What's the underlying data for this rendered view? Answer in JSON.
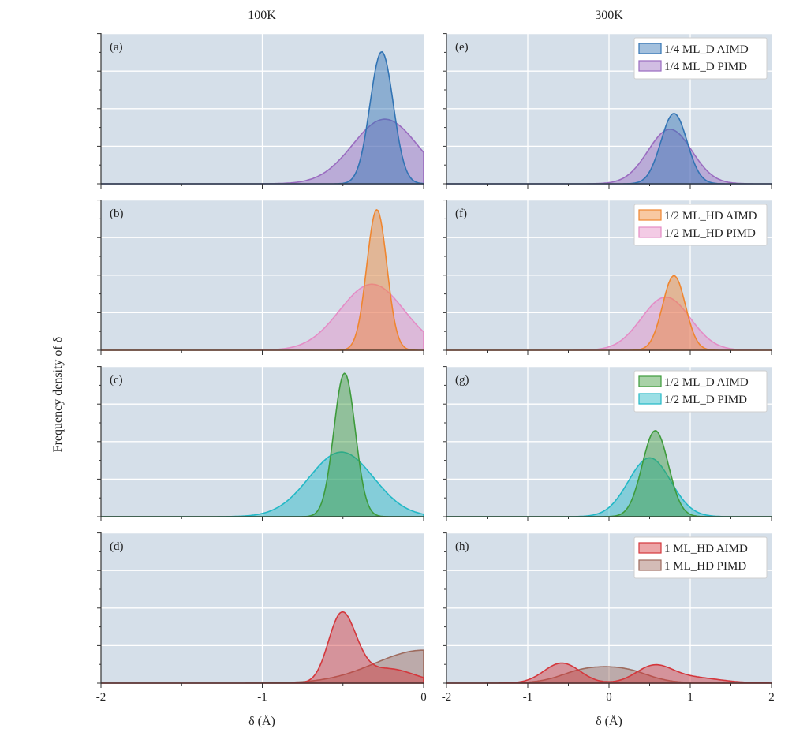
{
  "figure": {
    "column_titles": [
      "100K",
      "300K"
    ],
    "ylabel": "Frequency density of δ",
    "xlabel": "δ (Å)"
  },
  "colors": {
    "background": "#d5dfe9",
    "grid": "#ffffff",
    "1/4 ML_D AIMD": "#3274b4",
    "1/4 ML_D PIMD": "#9a6cc0",
    "1/2 ML_HD AIMD": "#ef8630",
    "1/2 ML_HD PIMD": "#e48cc6",
    "1/2 ML_D AIMD": "#3e9b3c",
    "1/2 ML_D PIMD": "#22b8c6",
    "1 ML_HD AIMD": "#d4373c",
    "1 ML_HD PIMD": "#9e6b5e"
  },
  "chart_data": [
    {
      "panel": "(a)",
      "type": "area",
      "temperature": "100K",
      "xlim": [
        -2,
        0
      ],
      "xticks": [
        "-2",
        "-1",
        "0"
      ],
      "ylim": [
        0,
        1.05
      ],
      "grid": true,
      "legend": "none",
      "series": [
        {
          "name": "1/4 ML_D AIMD",
          "shape": {
            "type": "gauss",
            "mu": -0.26,
            "sigma": 0.072,
            "h": 0.92
          }
        },
        {
          "name": "1/4 ML_D PIMD",
          "shape": {
            "type": "gauss",
            "mu": -0.24,
            "sigma": 0.2,
            "h": 0.45
          }
        }
      ]
    },
    {
      "panel": "(b)",
      "type": "area",
      "temperature": "100K",
      "xlim": [
        -2,
        0
      ],
      "xticks": [
        "-2",
        "-1",
        "0"
      ],
      "ylim": [
        0,
        1.05
      ],
      "grid": true,
      "legend": "none",
      "series": [
        {
          "name": "1/2 ML_HD AIMD",
          "shape": {
            "type": "gauss",
            "mu": -0.29,
            "sigma": 0.062,
            "h": 0.98
          }
        },
        {
          "name": "1/2 ML_HD PIMD",
          "shape": {
            "type": "gauss",
            "mu": -0.32,
            "sigma": 0.2,
            "h": 0.46
          }
        }
      ]
    },
    {
      "panel": "(c)",
      "type": "area",
      "temperature": "100K",
      "xlim": [
        -2,
        0
      ],
      "xticks": [
        "-2",
        "-1",
        "0"
      ],
      "ylim": [
        0,
        1.05
      ],
      "grid": true,
      "legend": "none",
      "series": [
        {
          "name": "1/2 ML_D AIMD",
          "shape": {
            "type": "gauss",
            "mu": -0.49,
            "sigma": 0.066,
            "h": 1.0
          }
        },
        {
          "name": "1/2 ML_D PIMD",
          "shape": {
            "type": "gauss",
            "mu": -0.51,
            "sigma": 0.2,
            "h": 0.45
          }
        }
      ]
    },
    {
      "panel": "(d)",
      "type": "area",
      "temperature": "100K",
      "xlim": [
        -2,
        0
      ],
      "xticks": [
        "-2",
        "-1",
        "0"
      ],
      "ylim": [
        0,
        1.05
      ],
      "grid": true,
      "legend": "none",
      "series": [
        {
          "name": "1 ML_HD AIMD",
          "shape": {
            "type": "sum",
            "parts": [
              [
                -0.53,
                0.075,
                0.27
              ],
              [
                -0.47,
                0.085,
                0.24
              ],
              [
                -0.22,
                0.16,
                0.1
              ]
            ]
          }
        },
        {
          "name": "1 ML_HD PIMD",
          "shape": {
            "type": "gauss",
            "mu": 0.0,
            "sigma": 0.3,
            "h": 0.23
          }
        }
      ]
    },
    {
      "panel": "(e)",
      "type": "area",
      "temperature": "300K",
      "xlim": [
        -2,
        2
      ],
      "xticks": [
        "-2",
        "-1",
        "0",
        "1",
        "2"
      ],
      "ylim": [
        0,
        1.05
      ],
      "grid": true,
      "legend": "top-right",
      "series": [
        {
          "name": "1/4 ML_D AIMD",
          "shape": {
            "type": "gauss",
            "mu": 0.8,
            "sigma": 0.16,
            "h": 0.49
          }
        },
        {
          "name": "1/4 ML_D PIMD",
          "shape": {
            "type": "gauss",
            "mu": 0.75,
            "sigma": 0.27,
            "h": 0.38
          }
        }
      ]
    },
    {
      "panel": "(f)",
      "type": "area",
      "temperature": "300K",
      "xlim": [
        -2,
        2
      ],
      "xticks": [
        "-2",
        "-1",
        "0",
        "1",
        "2"
      ],
      "ylim": [
        0,
        1.05
      ],
      "grid": true,
      "legend": "top-right",
      "series": [
        {
          "name": "1/2 ML_HD AIMD",
          "shape": {
            "type": "gauss",
            "mu": 0.8,
            "sigma": 0.14,
            "h": 0.52
          }
        },
        {
          "name": "1/2 ML_HD PIMD",
          "shape": {
            "type": "gauss",
            "mu": 0.7,
            "sigma": 0.3,
            "h": 0.37
          }
        }
      ]
    },
    {
      "panel": "(g)",
      "type": "area",
      "temperature": "300K",
      "xlim": [
        -2,
        2
      ],
      "xticks": [
        "-2",
        "-1",
        "0",
        "1",
        "2"
      ],
      "ylim": [
        0,
        1.05
      ],
      "grid": true,
      "legend": "top-right",
      "series": [
        {
          "name": "1/2 ML_D AIMD",
          "shape": {
            "type": "gauss",
            "mu": 0.57,
            "sigma": 0.16,
            "h": 0.6
          }
        },
        {
          "name": "1/2 ML_D PIMD",
          "shape": {
            "type": "gauss",
            "mu": 0.5,
            "sigma": 0.26,
            "h": 0.41
          }
        }
      ]
    },
    {
      "panel": "(h)",
      "type": "area",
      "temperature": "300K",
      "xlim": [
        -2,
        2
      ],
      "xticks": [
        "-2",
        "-1",
        "0",
        "1",
        "2"
      ],
      "ylim": [
        0,
        1.05
      ],
      "grid": true,
      "legend": "top-right",
      "series": [
        {
          "name": "1 ML_HD AIMD",
          "shape": {
            "type": "sum",
            "parts": [
              [
                -0.58,
                0.22,
                0.14
              ],
              [
                0.55,
                0.22,
                0.11
              ],
              [
                1.0,
                0.35,
                0.04
              ]
            ]
          }
        },
        {
          "name": "1 ML_HD PIMD",
          "shape": {
            "type": "plateau",
            "a": -0.55,
            "b": 0.45,
            "w": 0.16,
            "h": 0.125
          }
        }
      ]
    }
  ]
}
